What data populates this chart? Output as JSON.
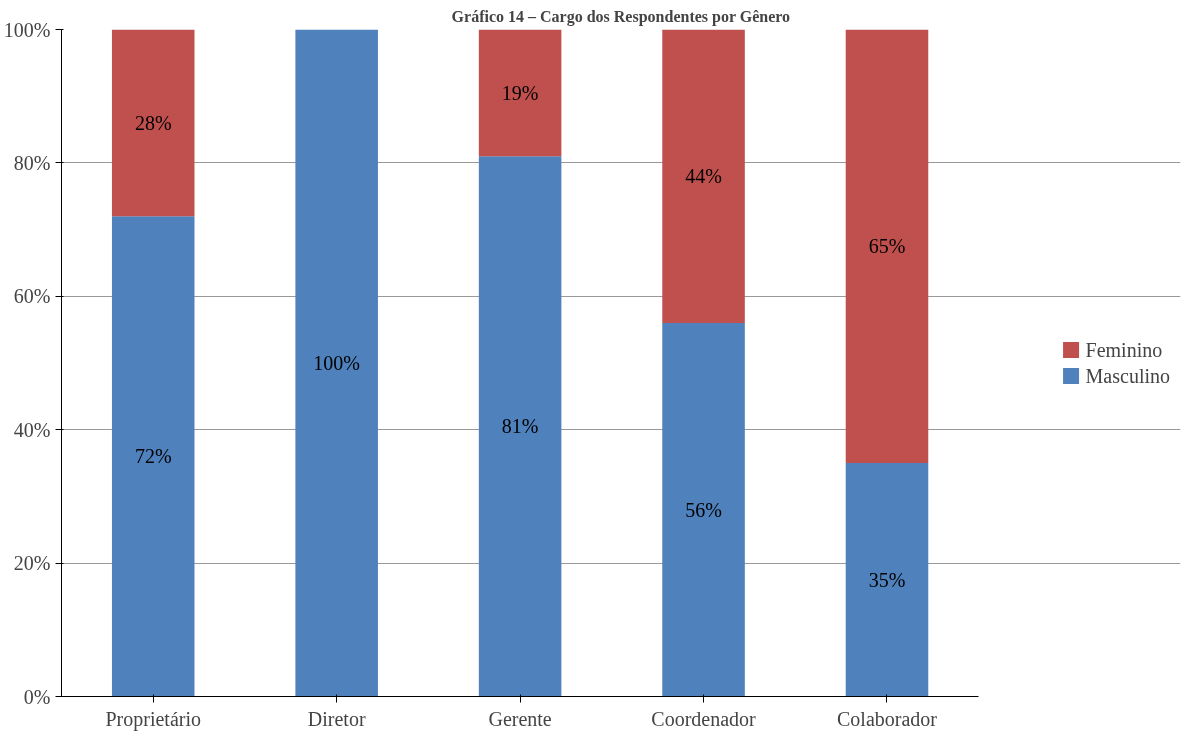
{
  "chart_data": {
    "type": "bar",
    "stacked": true,
    "title": "Gráfico 14 – Cargo dos Respondentes por Gênero",
    "categories": [
      "Proprietário",
      "Diretor",
      "Gerente",
      "Coordenador",
      "Colaborador"
    ],
    "series": [
      {
        "name": "Masculino",
        "color": "#4f81bd",
        "values": [
          72,
          100,
          81,
          56,
          35
        ]
      },
      {
        "name": "Feminino",
        "color": "#c0504d",
        "values": [
          28,
          0,
          19,
          44,
          65
        ]
      }
    ],
    "value_labels": [
      [
        "72%",
        "100%",
        "81%",
        "56%",
        "35%"
      ],
      [
        "28%",
        null,
        "19%",
        "44%",
        "65%"
      ]
    ],
    "ylim": [
      0,
      100
    ],
    "yticks": [
      {
        "value": 0,
        "label": "0%"
      },
      {
        "value": 20,
        "label": "20%"
      },
      {
        "value": 40,
        "label": "40%"
      },
      {
        "value": 60,
        "label": "60%"
      },
      {
        "value": 80,
        "label": "80%"
      },
      {
        "value": 100,
        "label": "100%"
      }
    ],
    "grid": "y",
    "legend": "right"
  }
}
